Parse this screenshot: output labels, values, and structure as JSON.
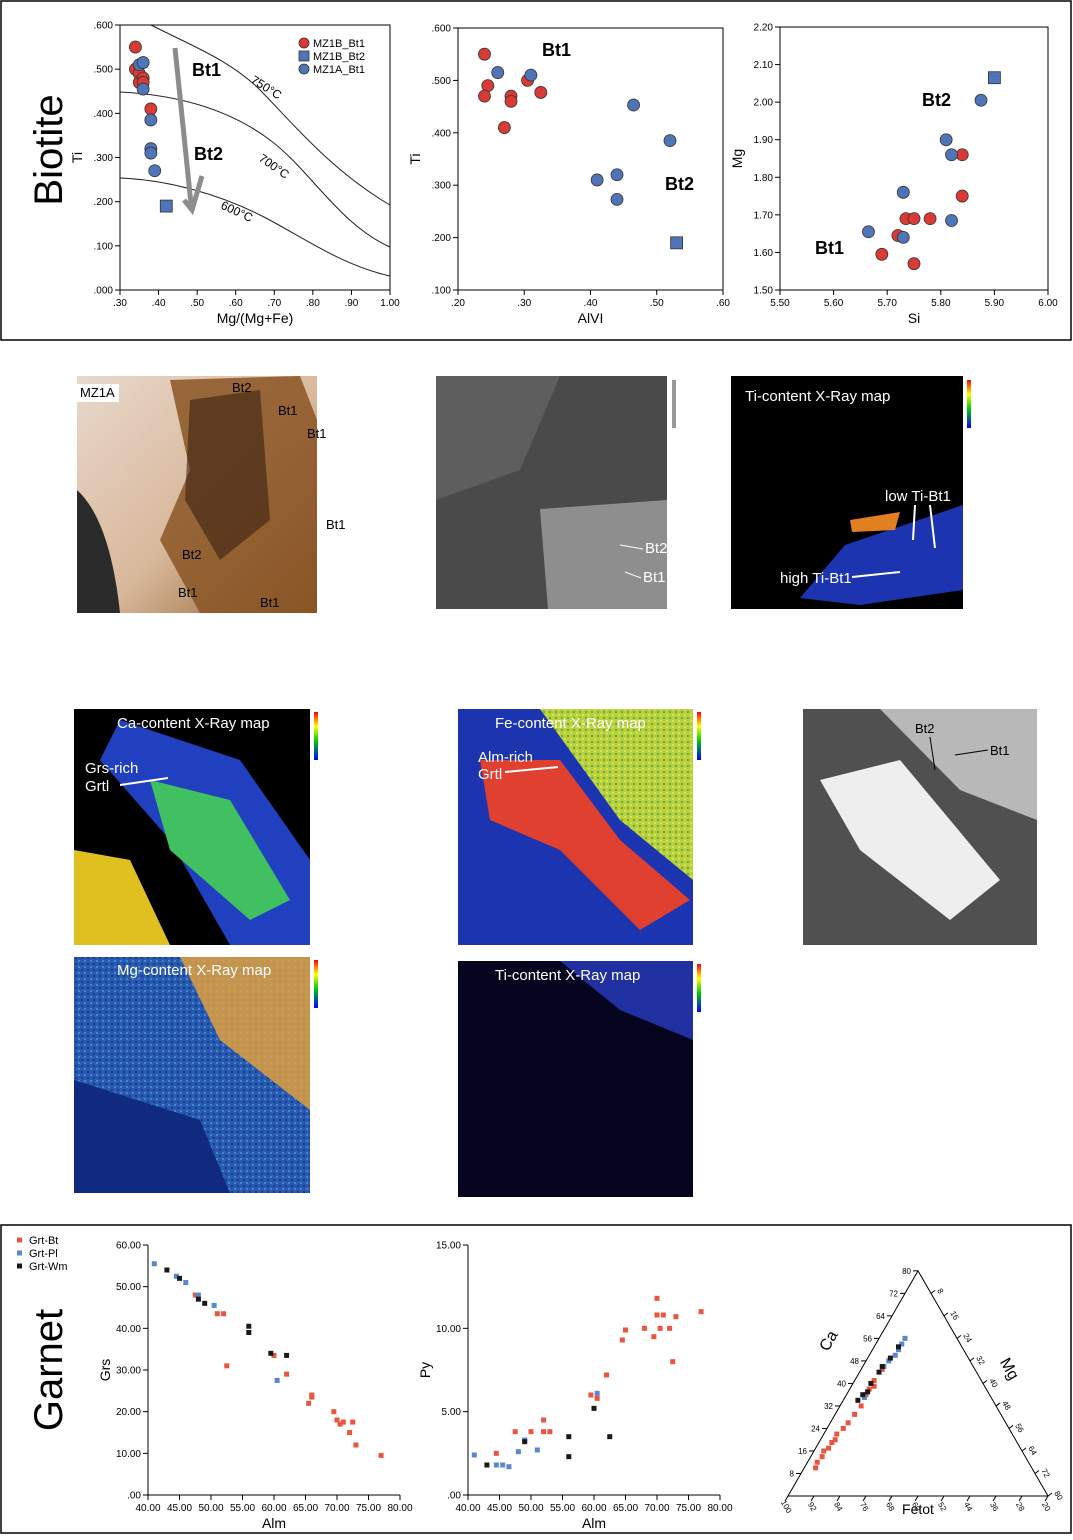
{
  "biotite_label": "Biotite",
  "garnet_label": "Garnet",
  "images": [
    {
      "labels": [
        "MZ1A",
        "Bt2",
        "Bt1",
        "Bt1",
        "Bt1",
        "Bt2",
        "Bt1",
        "Bt1"
      ]
    },
    {
      "labels": [
        "Bt2",
        "Bt1"
      ]
    },
    {
      "labels": [
        "Ti-content X-Ray map",
        "low Ti-Bt1",
        "high Ti-Bt1"
      ]
    },
    {
      "labels": [
        "Ca-content X-Ray map",
        "Grs-rich",
        "Grtl"
      ]
    },
    {
      "labels": [
        "Fe-content X-Ray map",
        "Alm-rich",
        "Grtl"
      ]
    },
    {
      "labels": [
        "Bt2",
        "Bt1"
      ]
    },
    {
      "labels": [
        "Mg-content X-Ray map"
      ]
    },
    {
      "labels": [
        "Ti-content X-Ray map"
      ]
    }
  ],
  "chart_data": [
    {
      "type": "scatter",
      "xlabel": "Mg/(Mg+Fe)",
      "ylabel": "Ti",
      "xlim": [
        0.3,
        1.0
      ],
      "ylim": [
        0,
        0.6
      ],
      "xticks": [
        {
          "value": 0.3,
          "label": ".30"
        },
        {
          "value": 0.4,
          "label": ".40"
        },
        {
          "value": 0.5,
          "label": ".50"
        },
        {
          "value": 0.6,
          "label": ".60"
        },
        {
          "value": 0.7,
          "label": ".70"
        },
        {
          "value": 0.8,
          "label": ".80"
        },
        {
          "value": 0.9,
          "label": ".90"
        },
        {
          "value": 1.0,
          "label": "1.00"
        }
      ],
      "yticks": [
        {
          "value": 0,
          "label": ".000"
        },
        {
          "value": 0.1,
          "label": ".100"
        },
        {
          "value": 0.2,
          "label": ".200"
        },
        {
          "value": 0.3,
          "label": ".300"
        },
        {
          "value": 0.4,
          "label": ".400"
        },
        {
          "value": 0.5,
          "label": ".500"
        },
        {
          "value": 0.6,
          "label": ".600"
        }
      ],
      "annotations": [
        "Bt1",
        "Bt2",
        "750°C",
        "700°C",
        "600°C"
      ],
      "series": [
        {
          "name": "MZ1B_Bt1",
          "color": "#d93a35",
          "marker": "circle",
          "x": [
            0.34,
            0.34,
            0.35,
            0.35,
            0.36,
            0.36,
            0.38
          ],
          "values": [
            0.55,
            0.5,
            0.49,
            0.47,
            0.48,
            0.47,
            0.41
          ]
        },
        {
          "name": "MZ1B_Bt2",
          "color": "#4f74b8",
          "marker": "square",
          "x": [
            0.42
          ],
          "values": [
            0.19
          ]
        },
        {
          "name": "MZ1A_Bt1",
          "color": "#4f74b8",
          "marker": "circle",
          "x": [
            0.35,
            0.36,
            0.36,
            0.38,
            0.38,
            0.38,
            0.39
          ],
          "values": [
            0.51,
            0.515,
            0.455,
            0.385,
            0.32,
            0.31,
            0.27
          ]
        }
      ]
    },
    {
      "type": "scatter",
      "xlabel": "AlVI",
      "ylabel": "Ti",
      "xlim": [
        0.2,
        0.6
      ],
      "ylim": [
        0.1,
        0.6
      ],
      "xticks": [
        {
          "value": 0.2,
          "label": ".20"
        },
        {
          "value": 0.3,
          "label": ".30"
        },
        {
          "value": 0.4,
          "label": ".40"
        },
        {
          "value": 0.5,
          "label": ".50"
        },
        {
          "value": 0.6,
          "label": ".60"
        }
      ],
      "yticks": [
        {
          "value": 0.1,
          "label": ".100"
        },
        {
          "value": 0.2,
          "label": ".200"
        },
        {
          "value": 0.3,
          "label": ".300"
        },
        {
          "value": 0.4,
          "label": ".400"
        },
        {
          "value": 0.5,
          "label": ".500"
        },
        {
          "value": 0.6,
          "label": ".600"
        }
      ],
      "annotations": [
        "Bt1",
        "Bt2"
      ],
      "series": [
        {
          "color": "#d93a35",
          "marker": "circle",
          "x": [
            0.24,
            0.245,
            0.24,
            0.28,
            0.28,
            0.27,
            0.305,
            0.325
          ],
          "values": [
            0.55,
            0.49,
            0.47,
            0.47,
            0.46,
            0.41,
            0.5,
            0.477
          ]
        },
        {
          "color": "#4f74b8",
          "marker": "square",
          "x": [
            0.53
          ],
          "values": [
            0.19
          ]
        },
        {
          "color": "#4f74b8",
          "marker": "circle",
          "x": [
            0.26,
            0.31,
            0.41,
            0.44,
            0.44,
            0.465,
            0.52
          ],
          "values": [
            0.515,
            0.51,
            0.31,
            0.32,
            0.273,
            0.453,
            0.385
          ]
        }
      ]
    },
    {
      "type": "scatter",
      "xlabel": "Si",
      "ylabel": "Mg",
      "xlim": [
        5.5,
        6.0
      ],
      "ylim": [
        1.5,
        2.2
      ],
      "xticks": [
        {
          "value": 5.5,
          "label": "5.50"
        },
        {
          "value": 5.6,
          "label": "5.60"
        },
        {
          "value": 5.7,
          "label": "5.70"
        },
        {
          "value": 5.8,
          "label": "5.80"
        },
        {
          "value": 5.9,
          "label": "5.90"
        },
        {
          "value": 6.0,
          "label": "6.00"
        }
      ],
      "yticks": [
        {
          "value": 1.5,
          "label": "1.50"
        },
        {
          "value": 1.6,
          "label": "1.60"
        },
        {
          "value": 1.7,
          "label": "1.70"
        },
        {
          "value": 1.8,
          "label": "1.80"
        },
        {
          "value": 1.9,
          "label": "1.90"
        },
        {
          "value": 2.0,
          "label": "2.00"
        },
        {
          "value": 2.1,
          "label": "2.10"
        },
        {
          "value": 2.2,
          "label": "2.20"
        }
      ],
      "annotations": [
        "Bt2",
        "Bt1"
      ],
      "series": [
        {
          "color": "#d93a35",
          "marker": "circle",
          "x": [
            5.69,
            5.72,
            5.735,
            5.75,
            5.78,
            5.75,
            5.84,
            5.84
          ],
          "values": [
            1.595,
            1.645,
            1.69,
            1.69,
            1.69,
            1.57,
            1.75,
            1.86
          ]
        },
        {
          "color": "#4f74b8",
          "marker": "square",
          "x": [
            5.9
          ],
          "values": [
            2.065
          ]
        },
        {
          "color": "#4f74b8",
          "marker": "circle",
          "x": [
            5.665,
            5.73,
            5.73,
            5.81,
            5.82,
            5.82,
            5.875
          ],
          "values": [
            1.655,
            1.64,
            1.76,
            1.9,
            1.86,
            1.685,
            2.005
          ]
        }
      ]
    },
    {
      "type": "scatter",
      "xlabel": "Alm",
      "ylabel": "Grs",
      "xlim": [
        40,
        80
      ],
      "ylim": [
        0,
        60
      ],
      "xticks": [
        {
          "value": 40,
          "label": "40.00"
        },
        {
          "value": 45,
          "label": "45.00"
        },
        {
          "value": 50,
          "label": "50.00"
        },
        {
          "value": 55,
          "label": "55.00"
        },
        {
          "value": 60,
          "label": "60.00"
        },
        {
          "value": 65,
          "label": "65.00"
        },
        {
          "value": 70,
          "label": "70.00"
        },
        {
          "value": 75,
          "label": "75.00"
        },
        {
          "value": 80,
          "label": "80.00"
        }
      ],
      "yticks": [
        {
          "value": 0,
          "label": ".00"
        },
        {
          "value": 10,
          "label": "10.00"
        },
        {
          "value": 20,
          "label": "20.00"
        },
        {
          "value": 30,
          "label": "30.00"
        },
        {
          "value": 40,
          "label": "40.00"
        },
        {
          "value": 50,
          "label": "50.00"
        },
        {
          "value": 60,
          "label": "60.00"
        }
      ],
      "series": [
        {
          "name": "Grt-Bt",
          "color": "#e9553f",
          "marker": "small",
          "x": [
            47.5,
            51,
            52,
            52.5,
            60,
            62,
            65.5,
            66,
            66,
            69.5,
            70,
            70.5,
            71,
            72,
            72.5,
            73,
            77
          ],
          "values": [
            48,
            43.5,
            43.5,
            31,
            33.5,
            29,
            22,
            23.5,
            24,
            20,
            18,
            17,
            17.5,
            15,
            17.5,
            12,
            9.5
          ]
        },
        {
          "name": "Grt-Pl",
          "color": "#5b86cf",
          "marker": "small",
          "x": [
            41,
            44.5,
            46,
            48,
            50.5,
            60.5
          ],
          "values": [
            55.5,
            52.5,
            51,
            48,
            45.5,
            27.5
          ]
        },
        {
          "name": "Grt-Wm",
          "color": "#1a1a1a",
          "marker": "small",
          "x": [
            43,
            45,
            48,
            49,
            56,
            56,
            59.5,
            62
          ],
          "values": [
            54,
            52,
            47,
            46,
            40.5,
            39,
            34,
            33.5
          ]
        }
      ]
    },
    {
      "type": "scatter",
      "xlabel": "Alm",
      "ylabel": "Py",
      "xlim": [
        40,
        80
      ],
      "ylim": [
        0,
        15
      ],
      "xticks": [
        {
          "value": 40,
          "label": "40.00"
        },
        {
          "value": 45,
          "label": "45.00"
        },
        {
          "value": 50,
          "label": "50.00"
        },
        {
          "value": 55,
          "label": "55.00"
        },
        {
          "value": 60,
          "label": "60.00"
        },
        {
          "value": 65,
          "label": "65.00"
        },
        {
          "value": 70,
          "label": "70.00"
        },
        {
          "value": 75,
          "label": "75.00"
        },
        {
          "value": 80,
          "label": "80.00"
        }
      ],
      "yticks": [
        {
          "value": 0,
          "label": ".00"
        },
        {
          "value": 5,
          "label": "5.00"
        },
        {
          "value": 10,
          "label": "10.00"
        },
        {
          "value": 15,
          "label": "15.00"
        }
      ],
      "series": [
        {
          "color": "#e9553f",
          "marker": "small",
          "x": [
            44.5,
            47.5,
            49,
            50,
            52,
            52,
            53,
            59.5,
            60.5,
            62,
            64.5,
            65,
            68,
            69.5,
            70,
            70,
            70.5,
            71,
            72,
            72.5,
            73,
            77
          ],
          "values": [
            2.5,
            3.8,
            3.3,
            3.8,
            4.5,
            3.8,
            3.8,
            6,
            5.8,
            7.2,
            9.3,
            9.9,
            10,
            9.5,
            10.8,
            11.8,
            10,
            10.8,
            10,
            8,
            10.7,
            11
          ]
        },
        {
          "color": "#5b86cf",
          "marker": "small",
          "x": [
            41,
            44.5,
            45.5,
            46.5,
            48,
            49,
            51,
            60.5
          ],
          "values": [
            2.4,
            1.8,
            1.8,
            1.7,
            2.6,
            3.3,
            2.7,
            6.1
          ]
        },
        {
          "color": "#1a1a1a",
          "marker": "small",
          "x": [
            43,
            49,
            56,
            56,
            60,
            62.5
          ],
          "values": [
            1.8,
            3.2,
            3.5,
            2.3,
            5.2,
            3.5
          ]
        }
      ]
    },
    {
      "type": "ternary",
      "alabel": "Ca",
      "blabel": "Mg",
      "clabel": "Fetot",
      "lim": 80,
      "aticks": [
        8,
        16,
        24,
        32,
        40,
        48,
        56,
        64,
        72,
        80
      ],
      "bticks": [
        8,
        16,
        24,
        32,
        40,
        48,
        56,
        64,
        72,
        80
      ],
      "cticks": [
        100,
        92,
        84,
        76,
        68,
        60,
        52,
        44,
        36,
        28,
        20
      ],
      "series": [
        {
          "color": "#e9553f",
          "a": [
            10,
            12,
            14,
            16,
            17,
            19,
            20,
            22,
            24,
            26,
            29,
            32,
            36,
            38,
            39,
            41,
            45
          ],
          "b": [
            3.5,
            3,
            3.5,
            3,
            4,
            4,
            4.5,
            4,
            5,
            5.5,
            6,
            6.5,
            6,
            6,
            7,
            6,
            6.5
          ]
        },
        {
          "color": "#5b86cf",
          "a": [
            56,
            54,
            52,
            50,
            48,
            46,
            35
          ],
          "b": [
            8,
            8,
            8,
            8,
            7,
            6.5,
            6
          ]
        },
        {
          "color": "#1a1a1a",
          "a": [
            53,
            49,
            46,
            44,
            40,
            37,
            36,
            34
          ],
          "b": [
            7.5,
            7,
            6,
            6,
            5.5,
            6,
            5,
            4.5
          ]
        }
      ]
    }
  ]
}
